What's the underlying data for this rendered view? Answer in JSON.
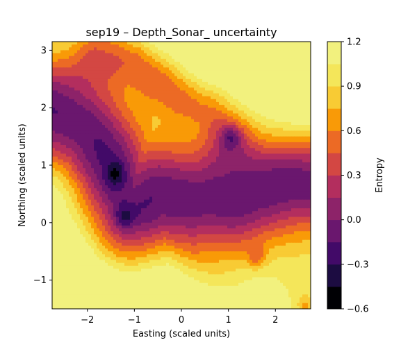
{
  "chart_data": {
    "type": "contourf",
    "title": "sep19 – Depth_Sonar_ uncertainty",
    "xlabel": "Easting (scaled units)",
    "ylabel": "Northing (scaled units)",
    "xlim": [
      -2.75,
      2.75
    ],
    "ylim": [
      -1.5,
      3.15
    ],
    "xticks": [
      -2,
      -1,
      0,
      1,
      2
    ],
    "yticks": [
      -1,
      0,
      1,
      2,
      3
    ],
    "xtick_labels": [
      "−2",
      "−1",
      "0",
      "1",
      "2"
    ],
    "ytick_labels": [
      "−1",
      "0",
      "1",
      "2",
      "3"
    ],
    "colorbar": {
      "label": "Entropy",
      "levels": [
        -0.6,
        -0.45,
        -0.3,
        -0.15,
        0.0,
        0.15,
        0.3,
        0.45,
        0.6,
        0.75,
        0.9,
        1.05,
        1.2
      ],
      "tick_values": [
        -0.6,
        -0.3,
        0.0,
        0.3,
        0.6,
        0.9,
        1.2
      ],
      "tick_labels": [
        "−0.6",
        "−0.3",
        "0.0",
        "0.3",
        "0.6",
        "0.9",
        "1.2"
      ],
      "colors": [
        "#000004",
        "#1c0c41",
        "#420a68",
        "#6a176e",
        "#8d2369",
        "#b32e5e",
        "#d34743",
        "#ec6a25",
        "#f99a07",
        "#f8cb34",
        "#f4e65a",
        "#f2f17e"
      ],
      "colormap": "inferno"
    },
    "field": {
      "description": "entropy surface: low values (dark) along a diagonal valley from upper-left to lower-right, high values (yellow) in lower-left and upper-right corners",
      "valley_path": [
        [
          -2.75,
          1.9
        ],
        [
          -2.0,
          1.6
        ],
        [
          -1.5,
          1.0
        ],
        [
          -1.2,
          0.1
        ],
        [
          -0.5,
          0.55
        ],
        [
          0.3,
          0.35
        ],
        [
          1.0,
          0.4
        ],
        [
          1.6,
          0.6
        ],
        [
          2.75,
          0.7
        ]
      ],
      "secondary_valley": [
        [
          -1.8,
          2.9
        ],
        [
          -1.0,
          2.8
        ],
        [
          -0.5,
          2.5
        ],
        [
          0.0,
          2.2
        ],
        [
          0.6,
          2.0
        ],
        [
          1.0,
          1.5
        ]
      ],
      "min_points": [
        [
          -1.22,
          0.1
        ],
        [
          -1.4,
          0.85
        ],
        [
          1.05,
          1.5
        ],
        [
          1.6,
          -0.6
        ],
        [
          2.65,
          -1.45
        ]
      ]
    }
  }
}
